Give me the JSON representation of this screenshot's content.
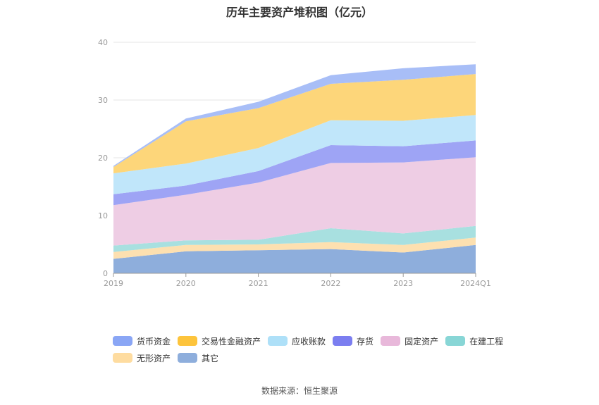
{
  "title": "历年主要资产堆积图（亿元）",
  "source_note": "数据来源：恒生聚源",
  "chart_data": {
    "type": "area",
    "stacked": true,
    "title": "历年主要资产堆积图（亿元）",
    "xlabel": "",
    "ylabel": "",
    "ylim": [
      0,
      40
    ],
    "yticks": [
      0,
      10,
      20,
      30,
      40
    ],
    "grid": true,
    "legend_position": "bottom",
    "x": [
      "2019",
      "2020",
      "2021",
      "2022",
      "2023",
      "2024Q1"
    ],
    "series": [
      {
        "name": "其它",
        "color": "#8eaedc",
        "values": [
          2.5,
          3.8,
          4.0,
          4.2,
          3.6,
          4.9
        ]
      },
      {
        "name": "无形资产",
        "color": "#fde0b0",
        "values": [
          1.2,
          1.1,
          1.0,
          1.2,
          1.3,
          1.3
        ]
      },
      {
        "name": "在建工程",
        "color": "#a8e0e0",
        "values": [
          1.1,
          0.8,
          0.8,
          2.4,
          2.0,
          2.0
        ]
      },
      {
        "name": "固定资产",
        "color": "#eecde4",
        "values": [
          7.0,
          7.9,
          9.9,
          11.3,
          12.3,
          11.9
        ]
      },
      {
        "name": "存货",
        "color": "#9ea4f5",
        "values": [
          1.9,
          1.6,
          2.0,
          3.1,
          2.8,
          2.9
        ]
      },
      {
        "name": "应收账款",
        "color": "#c0e6fa",
        "values": [
          3.6,
          3.8,
          4.0,
          4.3,
          4.4,
          4.4
        ]
      },
      {
        "name": "交易性金融资产",
        "color": "#fdd67a",
        "values": [
          1.1,
          7.3,
          6.9,
          6.3,
          7.1,
          7.1
        ]
      },
      {
        "name": "货币资金",
        "color": "#a8bef7",
        "values": [
          0.2,
          0.5,
          1.1,
          1.5,
          2.0,
          1.7
        ]
      }
    ]
  },
  "legend": [
    {
      "name": "货币资金",
      "color": "#8aa6f5"
    },
    {
      "name": "交易性金融资产",
      "color": "#fdc43c"
    },
    {
      "name": "应收账款",
      "color": "#aee0f8"
    },
    {
      "name": "存货",
      "color": "#7b7ef0"
    },
    {
      "name": "固定资产",
      "color": "#e8b8da"
    },
    {
      "name": "在建工程",
      "color": "#88d6d6"
    },
    {
      "name": "无形资产",
      "color": "#fedca0"
    },
    {
      "name": "其它",
      "color": "#8eaedc"
    }
  ]
}
